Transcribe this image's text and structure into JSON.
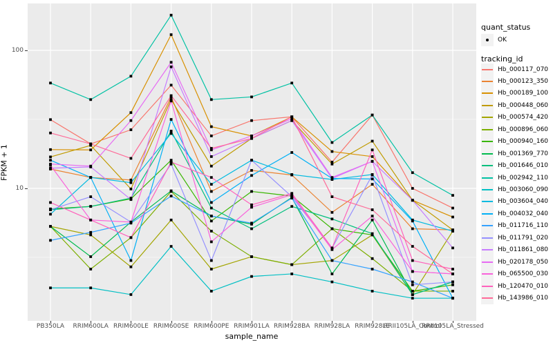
{
  "figure": {
    "background": "#FFFFFF",
    "panel_background": "#EBEBEB",
    "grid_color": "#FFFFFF",
    "tick_color": "#333333",
    "axis_text_color": "#4D4D4D",
    "title_text_color": "#000000",
    "point_color": "#000000",
    "legend_key_background": "#F2F2F2"
  },
  "axes": {
    "x_title": "sample_name",
    "y_title": "FPKM + 1",
    "y_tick_labels": [
      "100",
      "10"
    ],
    "y_tick_values": [
      100,
      10
    ],
    "y_minor_values": [
      31.623,
      3.1623
    ]
  },
  "legend": {
    "quant_title": "quant_status",
    "quant_items": [
      {
        "label": "OK",
        "marker": "point"
      }
    ],
    "tracking_title": "tracking_id"
  },
  "chart_data": {
    "type": "line",
    "title": "",
    "xlabel": "sample_name",
    "ylabel": "FPKM + 1",
    "y_scale": "log10",
    "ylim": [
      1.05,
      210
    ],
    "grid": true,
    "legend_position": "right",
    "point_marker": "filled-black-square",
    "categories": [
      "PB350LA",
      "RRIM600LA",
      "RRIM600LE",
      "RRIM600SE",
      "RRIM600PE",
      "RRIM901LA",
      "RRIM928BA",
      "RRIM928LA",
      "RRIM928LE",
      "RRII105LA_Control",
      "RRII105LA_Stressed"
    ],
    "series": [
      {
        "name": "Hb_000117_070",
        "color": "#F8766D",
        "values": [
          31.5,
          21,
          26.6,
          56,
          24,
          31,
          33,
          15.5,
          34,
          10,
          7.2
        ]
      },
      {
        "name": "Hb_000123_350",
        "color": "#EA8331",
        "values": [
          13.8,
          12,
          11.5,
          46,
          9.5,
          13.5,
          12.5,
          6.7,
          10.7,
          5.1,
          5.0
        ]
      },
      {
        "name": "Hb_000189_100",
        "color": "#D89000",
        "values": [
          19.1,
          19,
          35.4,
          130,
          28,
          24,
          33,
          18.5,
          17,
          8.2,
          6.2
        ]
      },
      {
        "name": "Hb_000448_060",
        "color": "#C09B00",
        "values": [
          16.9,
          20.5,
          9.9,
          44,
          14.5,
          23,
          31,
          15,
          22,
          8.2,
          5.0
        ]
      },
      {
        "name": "Hb_000574_420",
        "color": "#A3A500",
        "values": [
          5.3,
          4.6,
          2.7,
          5.9,
          2.6,
          3.2,
          2.8,
          3.0,
          4.6,
          1.7,
          4.9
        ]
      },
      {
        "name": "Hb_000896_060",
        "color": "#7CAE00",
        "values": [
          5.3,
          2.6,
          4.4,
          9.5,
          4.9,
          3.2,
          2.8,
          5.1,
          3.1,
          1.8,
          1.8
        ]
      },
      {
        "name": "Hb_000940_160",
        "color": "#39B600",
        "values": [
          7.1,
          7.4,
          8.4,
          16,
          5.8,
          9.5,
          8.8,
          5.1,
          4.6,
          1.8,
          2.0
        ]
      },
      {
        "name": "Hb_001369_770",
        "color": "#00BB4E",
        "values": [
          5.3,
          3.2,
          5.7,
          9.6,
          6.3,
          5.5,
          8.6,
          2.4,
          5.9,
          1.7,
          2.1
        ]
      },
      {
        "name": "Hb_001646_010",
        "color": "#00BF7D",
        "values": [
          7.0,
          7.4,
          8.5,
          26,
          7.2,
          5.1,
          7.4,
          6.0,
          4.7,
          1.7,
          2.1
        ]
      },
      {
        "name": "Hb_002942_110",
        "color": "#00C1A3",
        "values": [
          58,
          44,
          65,
          180,
          44,
          46,
          58,
          21.5,
          34,
          13,
          8.9
        ]
      },
      {
        "name": "Hb_003060_090",
        "color": "#00BFC4",
        "values": [
          1.9,
          1.9,
          1.7,
          3.8,
          1.8,
          2.3,
          2.4,
          2.1,
          1.8,
          1.6,
          1.6
        ]
      },
      {
        "name": "Hb_003604_040",
        "color": "#00BAE0",
        "values": [
          6.5,
          12,
          11,
          25,
          10.7,
          16,
          12.6,
          11.6,
          12.6,
          5.9,
          4.9
        ]
      },
      {
        "name": "Hb_004032_040",
        "color": "#00B0F6",
        "values": [
          16,
          12,
          3.0,
          31.6,
          7.9,
          12.4,
          18.2,
          11.8,
          11.7,
          5.8,
          1.6
        ]
      },
      {
        "name": "Hb_011716_110",
        "color": "#35A2FF",
        "values": [
          4.2,
          4.8,
          5.6,
          8.8,
          6.3,
          5.6,
          8.5,
          3.0,
          2.6,
          2.1,
          1.6
        ]
      },
      {
        "name": "Hb_011791_020",
        "color": "#9590FF",
        "values": [
          7.0,
          8.7,
          5.7,
          15,
          3.0,
          16,
          8.7,
          3.7,
          12.5,
          2.0,
          2.1
        ]
      },
      {
        "name": "Hb_011861_080",
        "color": "#C77CFF",
        "values": [
          14,
          14.3,
          8.3,
          76,
          17,
          23,
          31,
          11.8,
          15.7,
          8.2,
          3.7
        ]
      },
      {
        "name": "Hb_020178_050",
        "color": "#E76BF3",
        "values": [
          15,
          14.5,
          31,
          82,
          19,
          24,
          32,
          12,
          15.7,
          2.5,
          2.4
        ]
      },
      {
        "name": "Hb_065500_030",
        "color": "#FA62DB",
        "values": [
          14.7,
          5.9,
          5.7,
          43,
          4.1,
          7.3,
          9.0,
          3.6,
          6.3,
          2.5,
          2.4
        ]
      },
      {
        "name": "Hb_120470_010",
        "color": "#FF62BC",
        "values": [
          7.9,
          5.9,
          4.4,
          15.5,
          12,
          7.6,
          9.2,
          3.7,
          19,
          3.0,
          2.6
        ]
      },
      {
        "name": "Hb_143986_010",
        "color": "#FF6A98",
        "values": [
          25.2,
          21,
          16.5,
          47,
          19.5,
          23,
          33,
          8.7,
          7.0,
          3.8,
          2.4
        ]
      }
    ]
  }
}
